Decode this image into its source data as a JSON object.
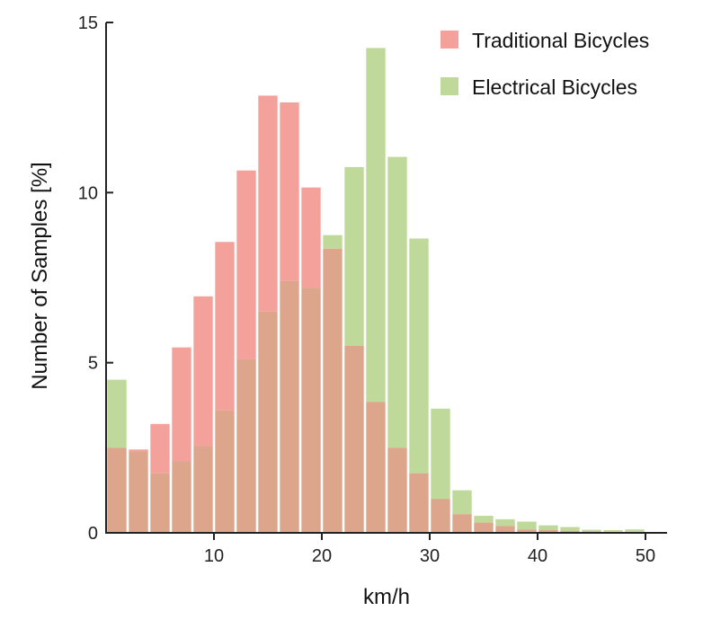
{
  "chart_data": {
    "type": "bar",
    "title": "",
    "xlabel": "km/h",
    "ylabel": "Number of Samples [%]",
    "xlim": [
      0,
      52
    ],
    "ylim": [
      0,
      15
    ],
    "xticks": [
      10,
      20,
      30,
      40,
      50
    ],
    "yticks": [
      0,
      5,
      10,
      15
    ],
    "grid": false,
    "legend": "top-right",
    "bin_width": 2,
    "x": [
      1,
      3,
      5,
      7,
      9,
      11,
      13,
      15,
      17,
      19,
      21,
      23,
      25,
      27,
      29,
      31,
      33,
      35,
      37,
      39,
      41,
      43,
      45,
      47,
      49
    ],
    "series": [
      {
        "name": "Traditional Bicycles",
        "color": "#f4a09b",
        "values": [
          2.5,
          2.45,
          3.2,
          5.45,
          6.95,
          8.55,
          10.65,
          12.85,
          12.65,
          10.15,
          8.35,
          5.5,
          3.85,
          2.5,
          1.75,
          1.0,
          0.55,
          0.3,
          0.2,
          0.1,
          0.08,
          0.06,
          0.04,
          0.03,
          0.02
        ]
      },
      {
        "name": "Electrical Bicycles",
        "color": "#bfd99a",
        "values": [
          4.5,
          2.4,
          1.75,
          2.1,
          2.55,
          3.6,
          5.1,
          6.5,
          7.4,
          7.2,
          8.75,
          10.75,
          14.25,
          11.05,
          8.65,
          3.65,
          1.25,
          0.5,
          0.4,
          0.33,
          0.22,
          0.17,
          0.09,
          0.08,
          0.1
        ]
      }
    ],
    "overlap_color": "#dda58b"
  }
}
